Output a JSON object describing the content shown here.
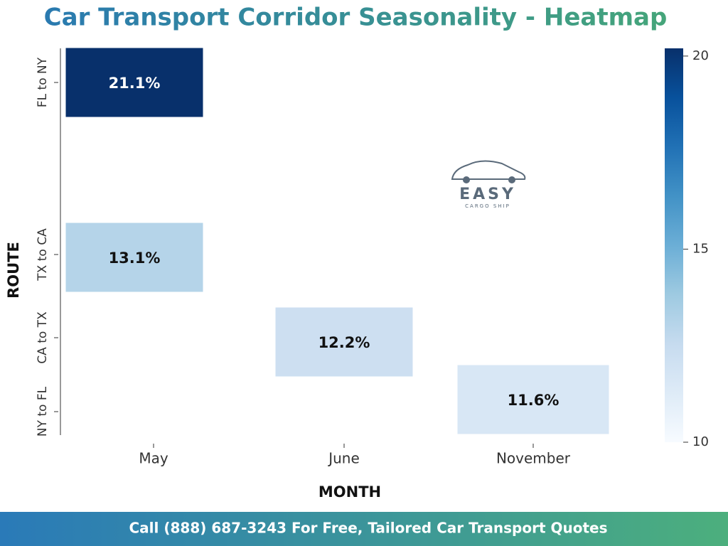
{
  "chart_data": {
    "type": "heatmap",
    "title": "Car Transport Corridor Seasonality - Heatmap",
    "x_label": "MONTH",
    "y_label": "ROUTE",
    "x_categories": [
      "May",
      "June",
      "November"
    ],
    "y_categories": [
      "FL to NY",
      "TX to CA",
      "CA to TX",
      "NY to FL"
    ],
    "values": [
      [
        21.1,
        null,
        null
      ],
      [
        13.1,
        null,
        null
      ],
      [
        null,
        12.2,
        null
      ],
      [
        null,
        null,
        11.6
      ]
    ],
    "value_labels": [
      [
        "21.1%",
        null,
        null
      ],
      [
        "13.1%",
        null,
        null
      ],
      [
        null,
        "12.2%",
        null
      ],
      [
        null,
        null,
        "11.6%"
      ]
    ],
    "colormap": "Blues",
    "clim": [
      10,
      20.2
    ],
    "cticks": [
      10,
      15,
      20
    ]
  },
  "logo": {
    "name": "EASY",
    "tagline": "CARGO SHIP"
  },
  "footer": "Call (888) 687-3243 For Free, Tailored Car Transport Quotes"
}
